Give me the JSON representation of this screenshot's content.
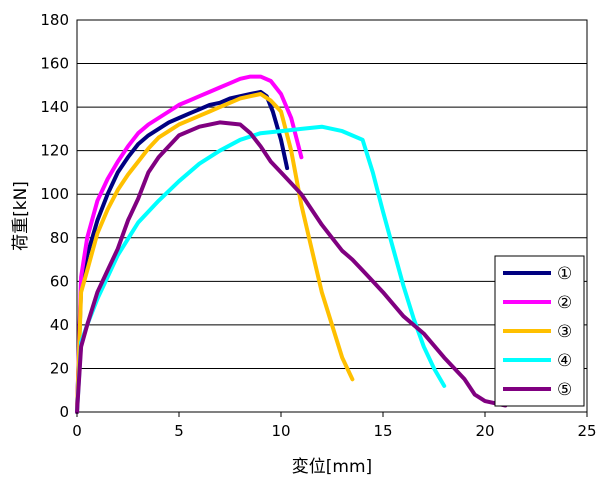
{
  "chart_data": {
    "type": "line",
    "title": "",
    "xlabel": "変位[mm]",
    "ylabel": "荷重[kN]",
    "xlim": [
      0,
      25
    ],
    "ylim": [
      0,
      180
    ],
    "xticks": [
      0,
      5,
      10,
      15,
      20,
      25
    ],
    "yticks": [
      0,
      20,
      40,
      60,
      80,
      100,
      120,
      140,
      160,
      180
    ],
    "grid": "horizontal",
    "legend_position": "bottom-right",
    "series": [
      {
        "name": "①",
        "color": "#000080",
        "x": [
          0,
          0.2,
          0.5,
          1,
          1.5,
          2,
          2.5,
          3,
          3.5,
          4,
          4.5,
          5,
          5.5,
          6,
          6.5,
          7,
          7.5,
          8,
          8.5,
          9,
          9.3,
          9.6,
          10,
          10.3
        ],
        "y": [
          0,
          58,
          72,
          88,
          100,
          110,
          117,
          123,
          127,
          130,
          133,
          135,
          137,
          139,
          141,
          142,
          144,
          145,
          146,
          147,
          145,
          138,
          125,
          112
        ]
      },
      {
        "name": "②",
        "color": "#FF00FF",
        "x": [
          0,
          0.2,
          0.5,
          1,
          1.5,
          2,
          2.5,
          3,
          3.5,
          4,
          4.5,
          5,
          5.5,
          6,
          6.5,
          7,
          7.5,
          8,
          8.5,
          9,
          9.5,
          10,
          10.5,
          11
        ],
        "y": [
          0,
          62,
          80,
          97,
          107,
          115,
          122,
          128,
          132,
          135,
          138,
          141,
          143,
          145,
          147,
          149,
          151,
          153,
          154,
          154,
          152,
          146,
          135,
          117
        ]
      },
      {
        "name": "③",
        "color": "#FFC000",
        "x": [
          0,
          0.2,
          0.5,
          1,
          1.5,
          2,
          2.5,
          3,
          3.5,
          4,
          4.5,
          5,
          5.5,
          6,
          6.5,
          7,
          7.5,
          8,
          8.5,
          9,
          9.5,
          10,
          10.5,
          11,
          11.5,
          12,
          12.5,
          13,
          13.5
        ],
        "y": [
          0,
          55,
          65,
          82,
          93,
          102,
          109,
          115,
          121,
          126,
          129,
          132,
          134,
          136,
          138,
          140,
          142,
          144,
          145,
          146,
          143,
          138,
          120,
          95,
          75,
          55,
          40,
          25,
          15
        ]
      },
      {
        "name": "④",
        "color": "#00FFFF",
        "x": [
          0,
          0.2,
          0.5,
          1,
          1.5,
          2,
          3,
          4,
          5,
          6,
          7,
          8,
          9,
          10,
          11,
          12,
          13,
          14,
          14.5,
          15,
          15.5,
          16,
          16.5,
          17,
          17.5,
          18
        ],
        "y": [
          0,
          32,
          40,
          52,
          62,
          72,
          87,
          97,
          106,
          114,
          120,
          125,
          128,
          129,
          130,
          131,
          129,
          125,
          110,
          92,
          75,
          58,
          43,
          30,
          20,
          12
        ]
      },
      {
        "name": "⑤",
        "color": "#800080",
        "x": [
          0,
          0.2,
          0.5,
          1,
          1.5,
          2,
          2.5,
          3,
          3.5,
          4,
          4.5,
          5,
          6,
          7,
          8,
          8.5,
          9,
          9.5,
          10,
          10.5,
          11,
          11.5,
          12,
          12.5,
          13,
          13.5,
          14,
          14.5,
          15,
          16,
          17,
          18,
          19,
          19.5,
          20,
          21
        ],
        "y": [
          0,
          30,
          40,
          55,
          65,
          75,
          88,
          98,
          110,
          117,
          122,
          127,
          131,
          133,
          132,
          128,
          122,
          115,
          110,
          105,
          100,
          93,
          86,
          80,
          74,
          70,
          65,
          60,
          55,
          44,
          36,
          25,
          15,
          8,
          5,
          3
        ]
      }
    ]
  }
}
